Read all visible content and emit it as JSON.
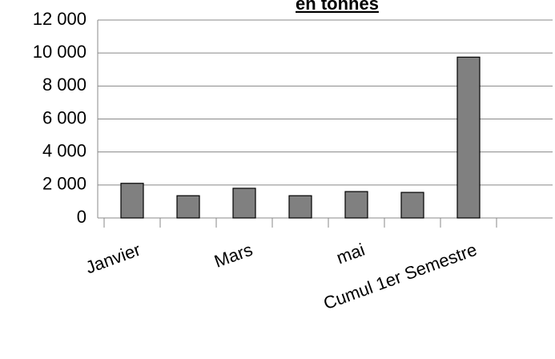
{
  "chart_data": {
    "type": "bar",
    "title": "en tonnes",
    "categories": [
      "Janvier",
      null,
      "Mars",
      null,
      "mai",
      null,
      "Cumul 1er Semestre",
      null
    ],
    "values": [
      2100,
      1350,
      1800,
      1350,
      1600,
      1550,
      9750,
      null
    ],
    "color": "#808080",
    "ylim": [
      0,
      12000
    ],
    "yticks": [
      0,
      {
        "value": 2000,
        "label": "2 000"
      },
      {
        "value": 4000,
        "label": "4 000"
      },
      {
        "value": 6000,
        "label": "6 000"
      },
      {
        "value": 8000,
        "label": "8 000"
      },
      {
        "value": 10000,
        "label": "10 000"
      },
      {
        "value": 12000,
        "label": "12 000"
      }
    ],
    "grid": true
  }
}
